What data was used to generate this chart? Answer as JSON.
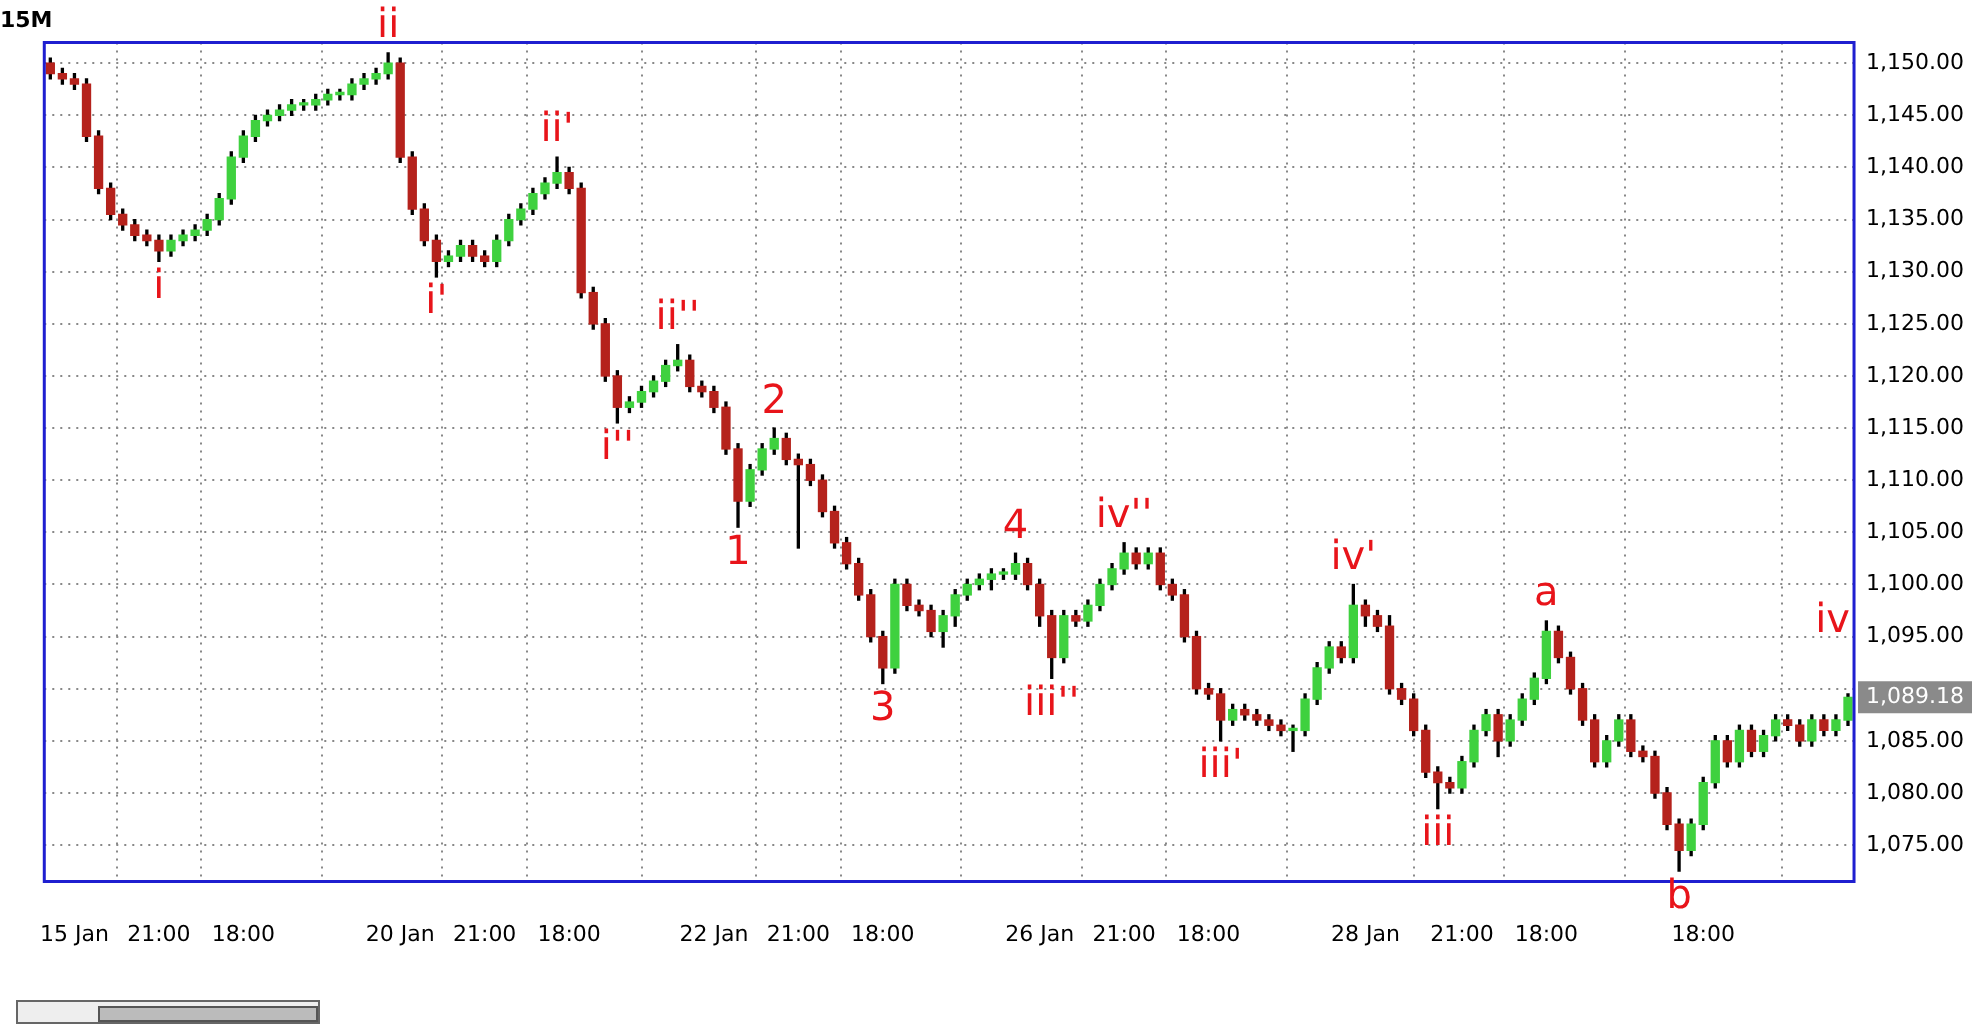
{
  "chart_data": {
    "type": "candlestick",
    "title": "15M",
    "categories": [
      null,
      null,
      "15 Jan",
      null,
      null,
      null,
      null,
      null,
      null,
      "21:00",
      null,
      null,
      null,
      null,
      null,
      null,
      "18:00",
      null,
      null,
      null,
      null,
      null,
      null,
      null,
      null,
      null,
      null,
      null,
      null,
      "20 Jan",
      null,
      null,
      null,
      null,
      null,
      null,
      "21:00",
      null,
      null,
      null,
      null,
      null,
      null,
      "18:00",
      null,
      null,
      null,
      null,
      null,
      null,
      null,
      null,
      null,
      null,
      null,
      "22 Jan",
      null,
      null,
      null,
      null,
      null,
      null,
      "21:00",
      null,
      null,
      null,
      null,
      null,
      null,
      "18:00",
      null,
      null,
      null,
      null,
      null,
      null,
      null,
      null,
      null,
      null,
      null,
      null,
      "26 Jan",
      null,
      null,
      null,
      null,
      null,
      null,
      "21:00",
      null,
      null,
      null,
      null,
      null,
      null,
      "18:00",
      null,
      null,
      null,
      null,
      null,
      null,
      null,
      null,
      null,
      null,
      null,
      null,
      "28 Jan",
      null,
      null,
      null,
      null,
      null,
      null,
      null,
      "21:00",
      null,
      null,
      null,
      null,
      null,
      null,
      "18:00",
      null,
      null,
      null,
      null,
      null,
      null,
      null,
      null,
      null,
      null,
      null,
      null,
      "18:00",
      null,
      null,
      null,
      null,
      null,
      null,
      null,
      null,
      null,
      null,
      null,
      null
    ],
    "ohlc": [
      [
        1150,
        1150.5,
        1148.5,
        1149
      ],
      [
        1149,
        1149.5,
        1148,
        1148.5
      ],
      [
        1148.5,
        1149,
        1147.5,
        1148
      ],
      [
        1148,
        1148.5,
        1142.5,
        1143
      ],
      [
        1143,
        1143.5,
        1137.5,
        1138
      ],
      [
        1138,
        1138.5,
        1135,
        1135.5
      ],
      [
        1135.5,
        1136,
        1134,
        1134.5
      ],
      [
        1134.5,
        1135,
        1133,
        1133.5
      ],
      [
        1133.5,
        1134,
        1132.5,
        1133
      ],
      [
        1133,
        1133.5,
        1131,
        1132
      ],
      [
        1132,
        1133.5,
        1131.5,
        1133
      ],
      [
        1133,
        1134,
        1132.5,
        1133.5
      ],
      [
        1133.5,
        1134.5,
        1133,
        1134
      ],
      [
        1134,
        1135.5,
        1133.5,
        1135
      ],
      [
        1135,
        1137.5,
        1134.5,
        1137
      ],
      [
        1137,
        1141.5,
        1136.5,
        1141
      ],
      [
        1141,
        1143.5,
        1140.5,
        1143
      ],
      [
        1143,
        1145,
        1142.5,
        1144.5
      ],
      [
        1144.5,
        1145.5,
        1144,
        1145
      ],
      [
        1145,
        1146,
        1144.5,
        1145.5
      ],
      [
        1145.5,
        1146.5,
        1145,
        1146
      ],
      [
        1146,
        1146.5,
        1145.5,
        1146
      ],
      [
        1146,
        1147,
        1145.5,
        1146.5
      ],
      [
        1146.5,
        1147.5,
        1146,
        1147
      ],
      [
        1147,
        1147.5,
        1146.5,
        1147
      ],
      [
        1147,
        1148.5,
        1146.5,
        1148
      ],
      [
        1148,
        1149,
        1147.5,
        1148.5
      ],
      [
        1148.5,
        1149.5,
        1148,
        1149
      ],
      [
        1149,
        1151,
        1148.5,
        1150
      ],
      [
        1150,
        1150.5,
        1140.5,
        1141
      ],
      [
        1141,
        1141.5,
        1135.5,
        1136
      ],
      [
        1136,
        1136.5,
        1132.5,
        1133
      ],
      [
        1133,
        1133.5,
        1129.5,
        1131
      ],
      [
        1131,
        1132,
        1130.5,
        1131.5
      ],
      [
        1131.5,
        1133,
        1131,
        1132.5
      ],
      [
        1132.5,
        1133,
        1131,
        1131.5
      ],
      [
        1131.5,
        1132,
        1130.5,
        1131
      ],
      [
        1131,
        1133.5,
        1130.5,
        1133
      ],
      [
        1133,
        1135.5,
        1132.5,
        1135
      ],
      [
        1135,
        1136.5,
        1134.5,
        1136
      ],
      [
        1136,
        1138,
        1135.5,
        1137.5
      ],
      [
        1137.5,
        1139,
        1137,
        1138.5
      ],
      [
        1138.5,
        1141,
        1138,
        1139.5
      ],
      [
        1139.5,
        1140,
        1137.5,
        1138
      ],
      [
        1138,
        1138.5,
        1127.5,
        1128
      ],
      [
        1128,
        1128.5,
        1124.5,
        1125
      ],
      [
        1125,
        1125.5,
        1119.5,
        1120
      ],
      [
        1120,
        1120.5,
        1115.5,
        1117
      ],
      [
        1117,
        1118,
        1116.5,
        1117.5
      ],
      [
        1117.5,
        1119,
        1117,
        1118.5
      ],
      [
        1118.5,
        1120,
        1118,
        1119.5
      ],
      [
        1119.5,
        1121.5,
        1119,
        1121
      ],
      [
        1121,
        1123,
        1120.5,
        1121.5
      ],
      [
        1121.5,
        1122,
        1118.5,
        1119
      ],
      [
        1119,
        1119.5,
        1118,
        1118.5
      ],
      [
        1118.5,
        1119,
        1116.5,
        1117
      ],
      [
        1117,
        1117.5,
        1112.5,
        1113
      ],
      [
        1113,
        1113.5,
        1105.5,
        1108
      ],
      [
        1108,
        1111.5,
        1107.5,
        1111
      ],
      [
        1111,
        1113.5,
        1110.5,
        1113
      ],
      [
        1113,
        1115,
        1112.5,
        1114
      ],
      [
        1114,
        1114.5,
        1111.5,
        1112
      ],
      [
        1112,
        1112.5,
        1103.5,
        1111.5
      ],
      [
        1111.5,
        1112,
        1109.5,
        1110
      ],
      [
        1110,
        1110.5,
        1106.5,
        1107
      ],
      [
        1107,
        1107.5,
        1103.5,
        1104
      ],
      [
        1104,
        1104.5,
        1101.5,
        1102
      ],
      [
        1102,
        1102.5,
        1098.5,
        1099
      ],
      [
        1099,
        1099.5,
        1094.5,
        1095
      ],
      [
        1095,
        1095.5,
        1090.5,
        1092
      ],
      [
        1092,
        1100.5,
        1091.5,
        1100
      ],
      [
        1100,
        1100.5,
        1097.5,
        1098
      ],
      [
        1098,
        1098.5,
        1097,
        1097.5
      ],
      [
        1097.5,
        1098,
        1095,
        1095.5
      ],
      [
        1095.5,
        1097.5,
        1094,
        1097
      ],
      [
        1097,
        1099.5,
        1096,
        1099
      ],
      [
        1099,
        1100.5,
        1098.5,
        1100
      ],
      [
        1100,
        1101,
        1099.5,
        1100.5
      ],
      [
        1100.5,
        1101.5,
        1099.5,
        1101
      ],
      [
        1101,
        1101.5,
        1100.5,
        1101
      ],
      [
        1101,
        1103,
        1100.5,
        1102
      ],
      [
        1102,
        1102.5,
        1099.5,
        1100
      ],
      [
        1100,
        1100.5,
        1096,
        1097
      ],
      [
        1097,
        1097.5,
        1091,
        1093
      ],
      [
        1093,
        1097.5,
        1092.5,
        1097
      ],
      [
        1097,
        1097.5,
        1096,
        1096.5
      ],
      [
        1096.5,
        1098.5,
        1096,
        1098
      ],
      [
        1098,
        1100.5,
        1097.5,
        1100
      ],
      [
        1100,
        1102,
        1099.5,
        1101.5
      ],
      [
        1101.5,
        1104,
        1101,
        1103
      ],
      [
        1103,
        1103.5,
        1101.5,
        1102
      ],
      [
        1102,
        1103.5,
        1101.5,
        1103
      ],
      [
        1103,
        1103.5,
        1099.5,
        1100
      ],
      [
        1100,
        1100.5,
        1098.5,
        1099
      ],
      [
        1099,
        1099.5,
        1094.5,
        1095
      ],
      [
        1095,
        1095.5,
        1089.5,
        1090
      ],
      [
        1090,
        1090.5,
        1089,
        1089.5
      ],
      [
        1089.5,
        1090,
        1085,
        1087
      ],
      [
        1087,
        1088.5,
        1086.5,
        1088
      ],
      [
        1088,
        1088.5,
        1087,
        1087.5
      ],
      [
        1087.5,
        1088,
        1086.5,
        1087
      ],
      [
        1087,
        1087.5,
        1086,
        1086.5
      ],
      [
        1086.5,
        1087,
        1085.5,
        1086
      ],
      [
        1086,
        1086.5,
        1084,
        1086
      ],
      [
        1086,
        1089.5,
        1085.5,
        1089
      ],
      [
        1089,
        1092.5,
        1088.5,
        1092
      ],
      [
        1092,
        1094.5,
        1091.5,
        1094
      ],
      [
        1094,
        1094.5,
        1092.5,
        1093
      ],
      [
        1093,
        1100,
        1092.5,
        1098
      ],
      [
        1098,
        1098.5,
        1096,
        1097
      ],
      [
        1097,
        1097.5,
        1095.5,
        1096
      ],
      [
        1096,
        1097,
        1089.5,
        1090
      ],
      [
        1090,
        1090.5,
        1088.5,
        1089
      ],
      [
        1089,
        1089.5,
        1085.5,
        1086
      ],
      [
        1086,
        1086.5,
        1081.5,
        1082
      ],
      [
        1082,
        1082.5,
        1078.5,
        1081
      ],
      [
        1081,
        1081.5,
        1080,
        1080.5
      ],
      [
        1080.5,
        1083.5,
        1080,
        1083
      ],
      [
        1083,
        1086.5,
        1082.5,
        1086
      ],
      [
        1086,
        1088,
        1085.5,
        1087.5
      ],
      [
        1087.5,
        1088,
        1083.5,
        1085
      ],
      [
        1085,
        1087.5,
        1084.5,
        1087
      ],
      [
        1087,
        1089.5,
        1086.5,
        1089
      ],
      [
        1089,
        1091.5,
        1088.5,
        1091
      ],
      [
        1091,
        1096.5,
        1090.5,
        1095.5
      ],
      [
        1095.5,
        1096,
        1092.5,
        1093
      ],
      [
        1093,
        1093.5,
        1089.5,
        1090
      ],
      [
        1090,
        1090.5,
        1086.5,
        1087
      ],
      [
        1087,
        1087.5,
        1082.5,
        1083
      ],
      [
        1083,
        1085.5,
        1082.5,
        1085
      ],
      [
        1085,
        1087.5,
        1084.5,
        1087
      ],
      [
        1087,
        1087.5,
        1083.5,
        1084
      ],
      [
        1084,
        1084.5,
        1083,
        1083.5
      ],
      [
        1083.5,
        1084,
        1079.5,
        1080
      ],
      [
        1080,
        1080.5,
        1076.5,
        1077
      ],
      [
        1077,
        1077.5,
        1072.5,
        1074.5
      ],
      [
        1074.5,
        1077.5,
        1074,
        1077
      ],
      [
        1077,
        1081.5,
        1076.5,
        1081
      ],
      [
        1081,
        1085.5,
        1080.5,
        1085
      ],
      [
        1085,
        1085.5,
        1082.5,
        1083
      ],
      [
        1083,
        1086.5,
        1082.5,
        1086
      ],
      [
        1086,
        1086.5,
        1083.5,
        1084
      ],
      [
        1084,
        1086,
        1083.5,
        1085.5
      ],
      [
        1085.5,
        1087.5,
        1085,
        1087
      ],
      [
        1087,
        1087.5,
        1086,
        1086.5
      ],
      [
        1086.5,
        1087,
        1084.5,
        1085
      ],
      [
        1085,
        1087.5,
        1084.5,
        1087
      ],
      [
        1087,
        1087.5,
        1085.5,
        1086
      ],
      [
        1086,
        1087.5,
        1085.5,
        1087
      ],
      [
        1087,
        1089.5,
        1086.5,
        1089.18
      ]
    ],
    "colors": [
      "#b5221c",
      "#b5221c",
      "#b5221c",
      "#b5221c",
      "#b5221c",
      "#b5221c",
      "#b5221c",
      "#b5221c",
      "#b5221c",
      "#b5221c",
      "#3fd13f",
      "#3fd13f",
      "#3fd13f",
      "#3fd13f",
      "#3fd13f",
      "#3fd13f",
      "#3fd13f",
      "#3fd13f",
      "#3fd13f",
      "#3fd13f",
      "#3fd13f",
      "#3fd13f",
      "#3fd13f",
      "#3fd13f",
      "#3fd13f",
      "#3fd13f",
      "#3fd13f",
      "#3fd13f",
      "#3fd13f",
      "#b5221c",
      "#b5221c",
      "#b5221c",
      "#b5221c",
      "#3fd13f",
      "#3fd13f",
      "#b5221c",
      "#b5221c",
      "#3fd13f",
      "#3fd13f",
      "#3fd13f",
      "#3fd13f",
      "#3fd13f",
      "#3fd13f",
      "#b5221c",
      "#b5221c",
      "#b5221c",
      "#b5221c",
      "#b5221c",
      "#3fd13f",
      "#3fd13f",
      "#3fd13f",
      "#3fd13f",
      "#3fd13f",
      "#b5221c",
      "#b5221c",
      "#b5221c",
      "#b5221c",
      "#b5221c",
      "#3fd13f",
      "#3fd13f",
      "#3fd13f",
      "#b5221c",
      "#b5221c",
      "#b5221c",
      "#b5221c",
      "#b5221c",
      "#b5221c",
      "#b5221c",
      "#b5221c",
      "#b5221c",
      "#3fd13f",
      "#b5221c",
      "#b5221c",
      "#b5221c",
      "#3fd13f",
      "#3fd13f",
      "#3fd13f",
      "#3fd13f",
      "#3fd13f",
      "#3fd13f",
      "#3fd13f",
      "#b5221c",
      "#b5221c",
      "#b5221c",
      "#3fd13f",
      "#b5221c",
      "#3fd13f",
      "#3fd13f",
      "#3fd13f",
      "#3fd13f",
      "#b5221c",
      "#3fd13f",
      "#b5221c",
      "#b5221c",
      "#b5221c",
      "#b5221c",
      "#b5221c",
      "#b5221c",
      "#3fd13f",
      "#b5221c",
      "#b5221c",
      "#b5221c",
      "#b5221c",
      "#3fd13f",
      "#3fd13f",
      "#3fd13f",
      "#3fd13f",
      "#b5221c",
      "#3fd13f",
      "#b5221c",
      "#b5221c",
      "#b5221c",
      "#b5221c",
      "#b5221c",
      "#b5221c",
      "#b5221c",
      "#b5221c",
      "#3fd13f",
      "#3fd13f",
      "#3fd13f",
      "#b5221c",
      "#3fd13f",
      "#3fd13f",
      "#3fd13f",
      "#3fd13f",
      "#b5221c",
      "#b5221c",
      "#b5221c",
      "#b5221c",
      "#3fd13f",
      "#3fd13f",
      "#b5221c",
      "#b5221c",
      "#b5221c",
      "#b5221c",
      "#b5221c",
      "#3fd13f",
      "#3fd13f",
      "#3fd13f",
      "#b5221c",
      "#3fd13f",
      "#b5221c",
      "#3fd13f",
      "#3fd13f",
      "#b5221c",
      "#b5221c",
      "#3fd13f",
      "#b5221c",
      "#3fd13f",
      "#3fd13f"
    ],
    "ylim": [
      1071.5,
      1152
    ],
    "yticks": [
      {
        "value": 1075,
        "label": "1,075.00"
      },
      {
        "value": 1080,
        "label": "1,080.00"
      },
      {
        "value": 1085,
        "label": "1,085.00"
      },
      {
        "value": 1090,
        "label": null
      },
      {
        "value": 1095,
        "label": "1,095.00"
      },
      {
        "value": 1100,
        "label": "1,100.00"
      },
      {
        "value": 1105,
        "label": "1,105.00"
      },
      {
        "value": 1110,
        "label": "1,110.00"
      },
      {
        "value": 1115,
        "label": "1,115.00"
      },
      {
        "value": 1120,
        "label": "1,120.00"
      },
      {
        "value": 1125,
        "label": "1,125.00"
      },
      {
        "value": 1130,
        "label": "1,130.00"
      },
      {
        "value": 1135,
        "label": "1,135.00"
      },
      {
        "value": 1140,
        "label": "1,140.00"
      },
      {
        "value": 1145,
        "label": "1,145.00"
      },
      {
        "value": 1150,
        "label": "1,150.00"
      }
    ],
    "grid": true,
    "annotations": [
      {
        "text": "i",
        "y": 1131
      },
      {
        "text": "ii",
        "y": 1151
      },
      {
        "text": "i'",
        "y": 1129.5
      },
      {
        "text": "ii'",
        "y": 1141
      },
      {
        "text": "i''",
        "y": 1115.5
      },
      {
        "text": "ii''",
        "y": 1123
      },
      {
        "text": "1",
        "y": 1105.5
      },
      {
        "text": "2",
        "y": 1115
      },
      {
        "text": "3",
        "y": 1090.5
      },
      {
        "text": "4",
        "y": 1103
      },
      {
        "text": "iii''",
        "y": 1091
      },
      {
        "text": "iv''",
        "y": 1104
      },
      {
        "text": "iii'",
        "y": 1085
      },
      {
        "text": "iv'",
        "y": 1100
      },
      {
        "text": "iii",
        "y": 1078.5
      },
      {
        "text": "a",
        "y": 1096.5
      },
      {
        "text": "b",
        "y": 1072.5
      },
      "iv",
      "1,089.18"
    ]
  }
}
